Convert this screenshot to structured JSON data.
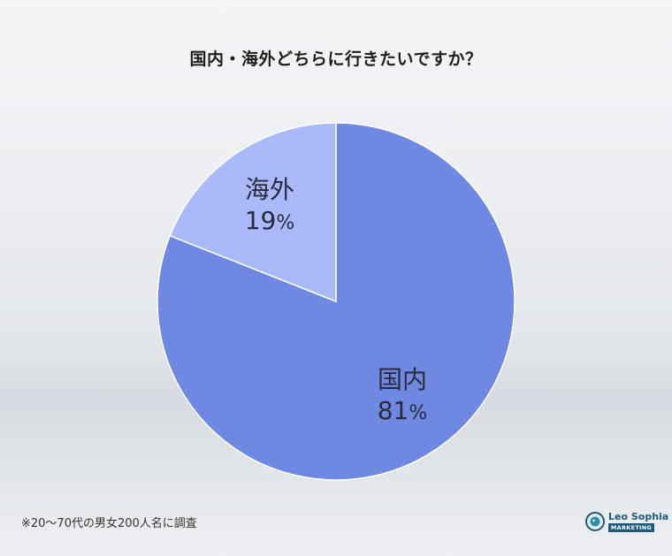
{
  "chart_data": {
    "type": "pie",
    "title": "国内・海外どちらに行きたいですか？",
    "slices": [
      {
        "label": "国内",
        "value": 81,
        "unit": "%",
        "color": "#6f88e2"
      },
      {
        "label": "海外",
        "value": 19,
        "unit": "%",
        "color": "#a9b9fa"
      }
    ],
    "start": "12 o'clock",
    "direction": "clockwise",
    "edge_color": "#ffffff"
  },
  "footnote": "※20〜70代の男女200人名に調査",
  "brand": {
    "name": "Leo Sophia",
    "sub": "MARKETING",
    "color": "#1f5a7a"
  }
}
